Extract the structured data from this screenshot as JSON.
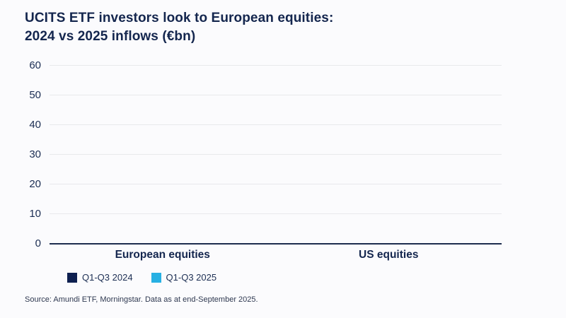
{
  "chart": {
    "title_line1": "UCITS ETF investors look to European equities:",
    "title_line2": "2024 vs 2025 inflows (€bn)",
    "source": "Source: Amundi ETF, Morningstar. Data as at end-September 2025."
  },
  "chart_data": {
    "type": "bar",
    "title": "UCITS ETF investors look to European equities: 2024 vs 2025 inflows (€bn)",
    "categories": [
      "European equities",
      "US equities"
    ],
    "series": [
      {
        "name": "Q1-Q3 2024",
        "color": "#0e2050",
        "values": [
          null,
          null
        ]
      },
      {
        "name": "Q1-Q3 2025",
        "color": "#27b0e3",
        "values": [
          null,
          null
        ]
      }
    ],
    "xlabel": "",
    "ylabel": "",
    "ylim": [
      0,
      60
    ],
    "yticks": [
      0,
      10,
      20,
      30,
      40,
      50,
      60
    ],
    "grid": true,
    "bars_rendered": false,
    "legend_position": "bottom-left"
  },
  "colors": {
    "background": "#fbfbfd",
    "title_text": "#14264e",
    "axis_text": "#1c2e53",
    "gridline": "#e8e9ec",
    "baseline": "#1c2c4e",
    "series_2024": "#0e2050",
    "series_2025": "#27b0e3"
  }
}
